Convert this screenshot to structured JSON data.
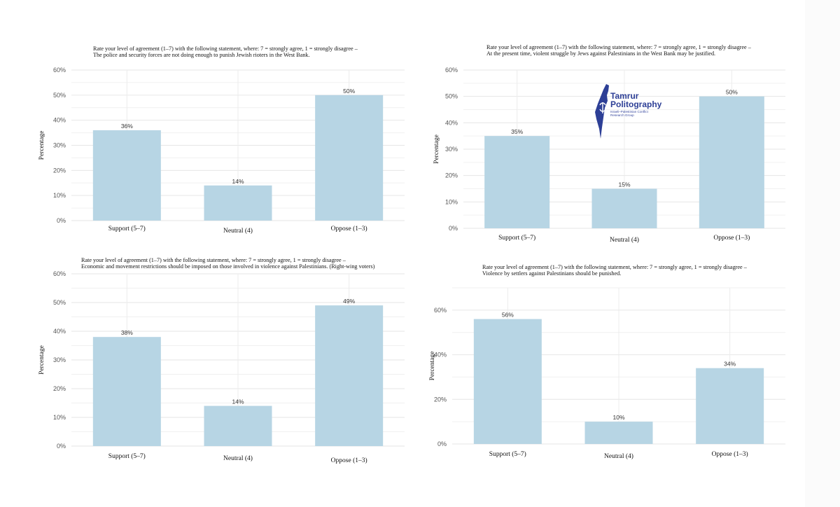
{
  "colors": {
    "bar": "#b7d5e4",
    "grid": "#e6e6e6",
    "text": "#111111"
  },
  "logo": {
    "name_line1": "Tamrur",
    "name_line2": "Politography",
    "subtitle": "Israeli–Palestinian Conflict Research Group",
    "icon": "israel-map-logo-icon"
  },
  "chart_data": [
    {
      "type": "bar",
      "title": "Rate your level of agreement (1–7) with the following statement, where: 7 = strongly agree, 1 = strongly disagree –",
      "subtitle": "The police and security forces are not doing enough to punish Jewish rioters in the West Bank.",
      "xlabel": "",
      "ylabel": "Percentage",
      "categories": [
        "Support (5–7)",
        "Neutral (4)",
        "Oppose (1–3)"
      ],
      "values": [
        36,
        14,
        50
      ],
      "value_labels": [
        "36%",
        "14%",
        "50%"
      ],
      "ylim": [
        0,
        60
      ],
      "yticks": [
        0,
        10,
        20,
        30,
        40,
        50,
        60
      ],
      "ytick_labels": [
        "0%",
        "10%",
        "20%",
        "30%",
        "40%",
        "50%",
        "60%"
      ]
    },
    {
      "type": "bar",
      "title": "Rate your level of agreement (1–7) with the following statement, where: 7 = strongly agree, 1 = strongly disagree –",
      "subtitle": "At the present time, violent struggle by Jews against Palestinians in the West Bank may be justified.",
      "xlabel": "",
      "ylabel": "Percentage",
      "categories": [
        "Support (5–7)",
        "Neutral (4)",
        "Oppose (1–3)"
      ],
      "values": [
        35,
        15,
        50
      ],
      "value_labels": [
        "35%",
        "15%",
        "50%"
      ],
      "ylim": [
        0,
        60
      ],
      "yticks": [
        0,
        10,
        20,
        30,
        40,
        50,
        60
      ],
      "ytick_labels": [
        "0%",
        "10%",
        "20%",
        "30%",
        "40%",
        "50%",
        "60%"
      ]
    },
    {
      "type": "bar",
      "title": "Rate your level of agreement (1–7) with the following statement, where: 7 = strongly agree, 1 = strongly disagree –",
      "subtitle": "Economic and movement restrictions should be imposed on those involved in violence against Palestinians. (Right-wing voters)",
      "xlabel": "",
      "ylabel": "Percentage",
      "categories": [
        "Support (5–7)",
        "Neutral (4)",
        "Oppose (1–3)"
      ],
      "values": [
        38,
        14,
        49
      ],
      "value_labels": [
        "38%",
        "14%",
        "49%"
      ],
      "ylim": [
        0,
        60
      ],
      "yticks": [
        0,
        10,
        20,
        30,
        40,
        50,
        60
      ],
      "ytick_labels": [
        "0%",
        "10%",
        "20%",
        "30%",
        "40%",
        "50%",
        "60%"
      ]
    },
    {
      "type": "bar",
      "title": "Rate your level of agreement (1–7) with the following statement, where: 7 = strongly agree, 1 = strongly disagree –",
      "subtitle": "Violence by settlers against Palestinians should be punished.",
      "xlabel": "",
      "ylabel": "Percentage",
      "categories": [
        "Support (5–7)",
        "Neutral (4)",
        "Oppose (1–3)"
      ],
      "values": [
        56,
        10,
        34
      ],
      "value_labels": [
        "56%",
        "10%",
        "34%"
      ],
      "ylim": [
        0,
        70
      ],
      "yticks": [
        0,
        20,
        40,
        60
      ],
      "ytick_labels": [
        "0%",
        "20%",
        "40%",
        "60%"
      ]
    }
  ]
}
